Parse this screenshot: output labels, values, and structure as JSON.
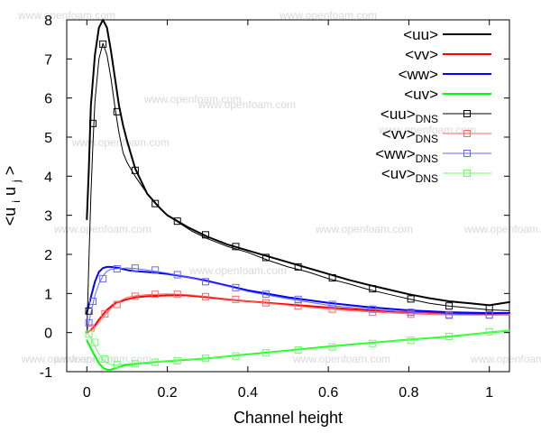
{
  "page": {
    "watermark": "www.openfoam.com"
  },
  "chart_data": {
    "type": "line",
    "title": "",
    "xlabel": "Channel height",
    "ylabel": "<ui uj>",
    "ylabel_parts": {
      "left": "<u",
      "sub1": "i",
      "mid": " u",
      "sub2": "j",
      "right": ">"
    },
    "xlim": [
      -0.05,
      1.05
    ],
    "ylim": [
      -1,
      8
    ],
    "xticks": [
      0,
      0.2,
      0.4,
      0.6,
      0.8,
      1
    ],
    "xtick_labels": [
      "0",
      "0.2",
      "0.4",
      "0.6",
      "0.8",
      "1"
    ],
    "yticks": [
      -1,
      0,
      1,
      2,
      3,
      4,
      5,
      6,
      7,
      8
    ],
    "ytick_labels": [
      "-1",
      "0",
      "1",
      "2",
      "3",
      "4",
      "5",
      "6",
      "7",
      "8"
    ],
    "grid": false,
    "legend_position": "top-right",
    "series": [
      {
        "name": "<uu>",
        "legend_main": "<uu>",
        "legend_sub": "",
        "color": "#000000",
        "line_width": 2,
        "marker": "none",
        "x": [
          0,
          0.005,
          0.01,
          0.02,
          0.03,
          0.04,
          0.05,
          0.06,
          0.07,
          0.08,
          0.09,
          0.1,
          0.12,
          0.15,
          0.18,
          0.2,
          0.25,
          0.3,
          0.35,
          0.4,
          0.45,
          0.5,
          0.55,
          0.6,
          0.65,
          0.7,
          0.75,
          0.8,
          0.85,
          0.9,
          0.95,
          1.0,
          1.05
        ],
        "y": [
          2.9,
          4.2,
          5.8,
          7.1,
          7.8,
          8.0,
          7.8,
          7.2,
          6.5,
          5.8,
          5.3,
          4.9,
          4.2,
          3.55,
          3.2,
          3.0,
          2.7,
          2.45,
          2.25,
          2.1,
          1.95,
          1.8,
          1.65,
          1.5,
          1.35,
          1.22,
          1.1,
          0.98,
          0.88,
          0.8,
          0.75,
          0.7,
          0.78
        ]
      },
      {
        "name": "<vv>",
        "legend_main": "<vv>",
        "legend_sub": "",
        "color": "#ff0000",
        "line_width": 2,
        "marker": "none",
        "x": [
          0,
          0.01,
          0.02,
          0.03,
          0.05,
          0.07,
          0.1,
          0.12,
          0.15,
          0.2,
          0.25,
          0.3,
          0.35,
          0.4,
          0.5,
          0.6,
          0.7,
          0.8,
          0.9,
          1.0,
          1.05
        ],
        "y": [
          0.0,
          0.06,
          0.18,
          0.33,
          0.58,
          0.75,
          0.85,
          0.9,
          0.93,
          0.95,
          0.95,
          0.9,
          0.85,
          0.8,
          0.72,
          0.64,
          0.57,
          0.52,
          0.49,
          0.48,
          0.48
        ]
      },
      {
        "name": "<ww>",
        "legend_main": "<ww>",
        "legend_sub": "",
        "color": "#0000ff",
        "line_width": 2,
        "marker": "none",
        "x": [
          0,
          0.01,
          0.02,
          0.03,
          0.04,
          0.05,
          0.06,
          0.08,
          0.1,
          0.12,
          0.15,
          0.2,
          0.25,
          0.3,
          0.35,
          0.4,
          0.5,
          0.6,
          0.7,
          0.8,
          0.9,
          1.0,
          1.05
        ],
        "y": [
          0.5,
          0.9,
          1.3,
          1.55,
          1.65,
          1.68,
          1.68,
          1.65,
          1.6,
          1.57,
          1.55,
          1.5,
          1.42,
          1.32,
          1.2,
          1.08,
          0.9,
          0.76,
          0.65,
          0.57,
          0.52,
          0.5,
          0.5
        ]
      },
      {
        "name": "<uv>",
        "legend_main": "<uv>",
        "legend_sub": "",
        "color": "#00ff00",
        "line_width": 2,
        "marker": "none",
        "x": [
          0,
          0.01,
          0.02,
          0.03,
          0.04,
          0.05,
          0.06,
          0.08,
          0.1,
          0.15,
          0.2,
          0.3,
          0.4,
          0.5,
          0.6,
          0.7,
          0.8,
          0.9,
          1.0,
          1.05
        ],
        "y": [
          -0.2,
          -0.4,
          -0.6,
          -0.78,
          -0.9,
          -0.95,
          -0.95,
          -0.88,
          -0.82,
          -0.77,
          -0.73,
          -0.66,
          -0.56,
          -0.46,
          -0.36,
          -0.27,
          -0.18,
          -0.1,
          0.0,
          0.05
        ]
      },
      {
        "name": "<uu>DNS",
        "legend_main": "<uu>",
        "legend_sub": "DNS",
        "color": "#000000",
        "line_width": 1,
        "marker": "square",
        "line_x": [
          0,
          0.005,
          0.01,
          0.015,
          0.02,
          0.03,
          0.04,
          0.05,
          0.06,
          0.07,
          0.08,
          0.09,
          0.1,
          0.12,
          0.15,
          0.17,
          0.2,
          0.23,
          0.26,
          0.3,
          0.35,
          0.4,
          0.45,
          0.5,
          0.55,
          0.6,
          0.65,
          0.7,
          0.75,
          0.8,
          0.85,
          0.9,
          0.95,
          1.0,
          1.05
        ],
        "line_y": [
          0.0,
          1.8,
          3.5,
          4.8,
          5.9,
          7.0,
          7.4,
          7.1,
          6.5,
          5.75,
          5.1,
          4.6,
          4.35,
          4.0,
          3.55,
          3.3,
          3.0,
          2.8,
          2.6,
          2.4,
          2.2,
          2.05,
          1.85,
          1.68,
          1.55,
          1.38,
          1.25,
          1.1,
          0.98,
          0.86,
          0.75,
          0.68,
          0.63,
          0.58,
          0.56
        ],
        "x": [
          0.005,
          0.015,
          0.04,
          0.075,
          0.12,
          0.17,
          0.225,
          0.295,
          0.37,
          0.445,
          0.525,
          0.61,
          0.71,
          0.805,
          0.9,
          1.0
        ],
        "y": [
          0.55,
          5.35,
          7.38,
          5.65,
          4.15,
          3.3,
          2.85,
          2.5,
          2.2,
          1.92,
          1.68,
          1.4,
          1.12,
          0.86,
          0.68,
          0.62
        ]
      },
      {
        "name": "<vv>DNS",
        "legend_main": "<vv>",
        "legend_sub": "DNS",
        "color": "#ff6666",
        "line_width": 1,
        "marker": "square",
        "line_x": [
          0,
          0.01,
          0.02,
          0.04,
          0.06,
          0.08,
          0.1,
          0.12,
          0.15,
          0.2,
          0.25,
          0.3,
          0.35,
          0.4,
          0.5,
          0.6,
          0.7,
          0.8,
          0.9,
          1.0,
          1.05
        ],
        "line_y": [
          0.0,
          0.05,
          0.14,
          0.38,
          0.62,
          0.8,
          0.9,
          0.94,
          0.97,
          0.99,
          0.97,
          0.92,
          0.86,
          0.8,
          0.7,
          0.6,
          0.53,
          0.48,
          0.45,
          0.45,
          0.47
        ],
        "x": [
          0.01,
          0.045,
          0.075,
          0.12,
          0.17,
          0.225,
          0.295,
          0.37,
          0.445,
          0.525,
          0.61,
          0.71,
          0.805,
          0.9,
          1.0
        ],
        "y": [
          0.12,
          0.48,
          0.72,
          0.93,
          0.98,
          0.98,
          0.92,
          0.85,
          0.76,
          0.68,
          0.6,
          0.52,
          0.47,
          0.44,
          0.45
        ]
      },
      {
        "name": "<ww>DNS",
        "legend_main": "<ww>",
        "legend_sub": "DNS",
        "color": "#6666ff",
        "line_width": 1,
        "marker": "square",
        "line_x": [
          0,
          0.005,
          0.01,
          0.02,
          0.03,
          0.04,
          0.05,
          0.06,
          0.08,
          0.1,
          0.12,
          0.15,
          0.2,
          0.25,
          0.3,
          0.35,
          0.4,
          0.5,
          0.6,
          0.7,
          0.8,
          0.9,
          1.0,
          1.05
        ],
        "line_y": [
          0.0,
          0.25,
          0.5,
          0.95,
          1.25,
          1.45,
          1.57,
          1.62,
          1.64,
          1.65,
          1.64,
          1.6,
          1.52,
          1.42,
          1.3,
          1.18,
          1.05,
          0.86,
          0.7,
          0.6,
          0.52,
          0.47,
          0.45,
          0.45
        ],
        "x": [
          0.005,
          0.015,
          0.04,
          0.075,
          0.12,
          0.17,
          0.225,
          0.295,
          0.37,
          0.445,
          0.525,
          0.61,
          0.71,
          0.805,
          0.9,
          1.0
        ],
        "y": [
          0.25,
          0.8,
          1.38,
          1.63,
          1.65,
          1.6,
          1.48,
          1.3,
          1.15,
          0.98,
          0.85,
          0.72,
          0.6,
          0.52,
          0.46,
          0.45
        ]
      },
      {
        "name": "<uv>DNS",
        "legend_main": "<uv>",
        "legend_sub": "DNS",
        "color": "#66ff66",
        "line_width": 1,
        "marker": "square",
        "line_x": [
          0,
          0.01,
          0.02,
          0.03,
          0.04,
          0.05,
          0.06,
          0.08,
          0.1,
          0.15,
          0.2,
          0.3,
          0.4,
          0.5,
          0.6,
          0.7,
          0.8,
          0.9,
          1.0,
          1.05
        ],
        "line_y": [
          0.0,
          -0.14,
          -0.35,
          -0.55,
          -0.7,
          -0.78,
          -0.82,
          -0.82,
          -0.8,
          -0.76,
          -0.72,
          -0.66,
          -0.57,
          -0.47,
          -0.37,
          -0.28,
          -0.18,
          -0.09,
          0.0,
          0.05
        ],
        "x": [
          0.005,
          0.02,
          0.045,
          0.075,
          0.12,
          0.17,
          0.225,
          0.295,
          0.37,
          0.445,
          0.525,
          0.61,
          0.71,
          0.805,
          0.9,
          1.0
        ],
        "y": [
          -0.04,
          -0.25,
          -0.68,
          -0.82,
          -0.8,
          -0.76,
          -0.72,
          -0.66,
          -0.6,
          -0.52,
          -0.45,
          -0.37,
          -0.28,
          -0.2,
          -0.1,
          0.02
        ]
      }
    ]
  }
}
